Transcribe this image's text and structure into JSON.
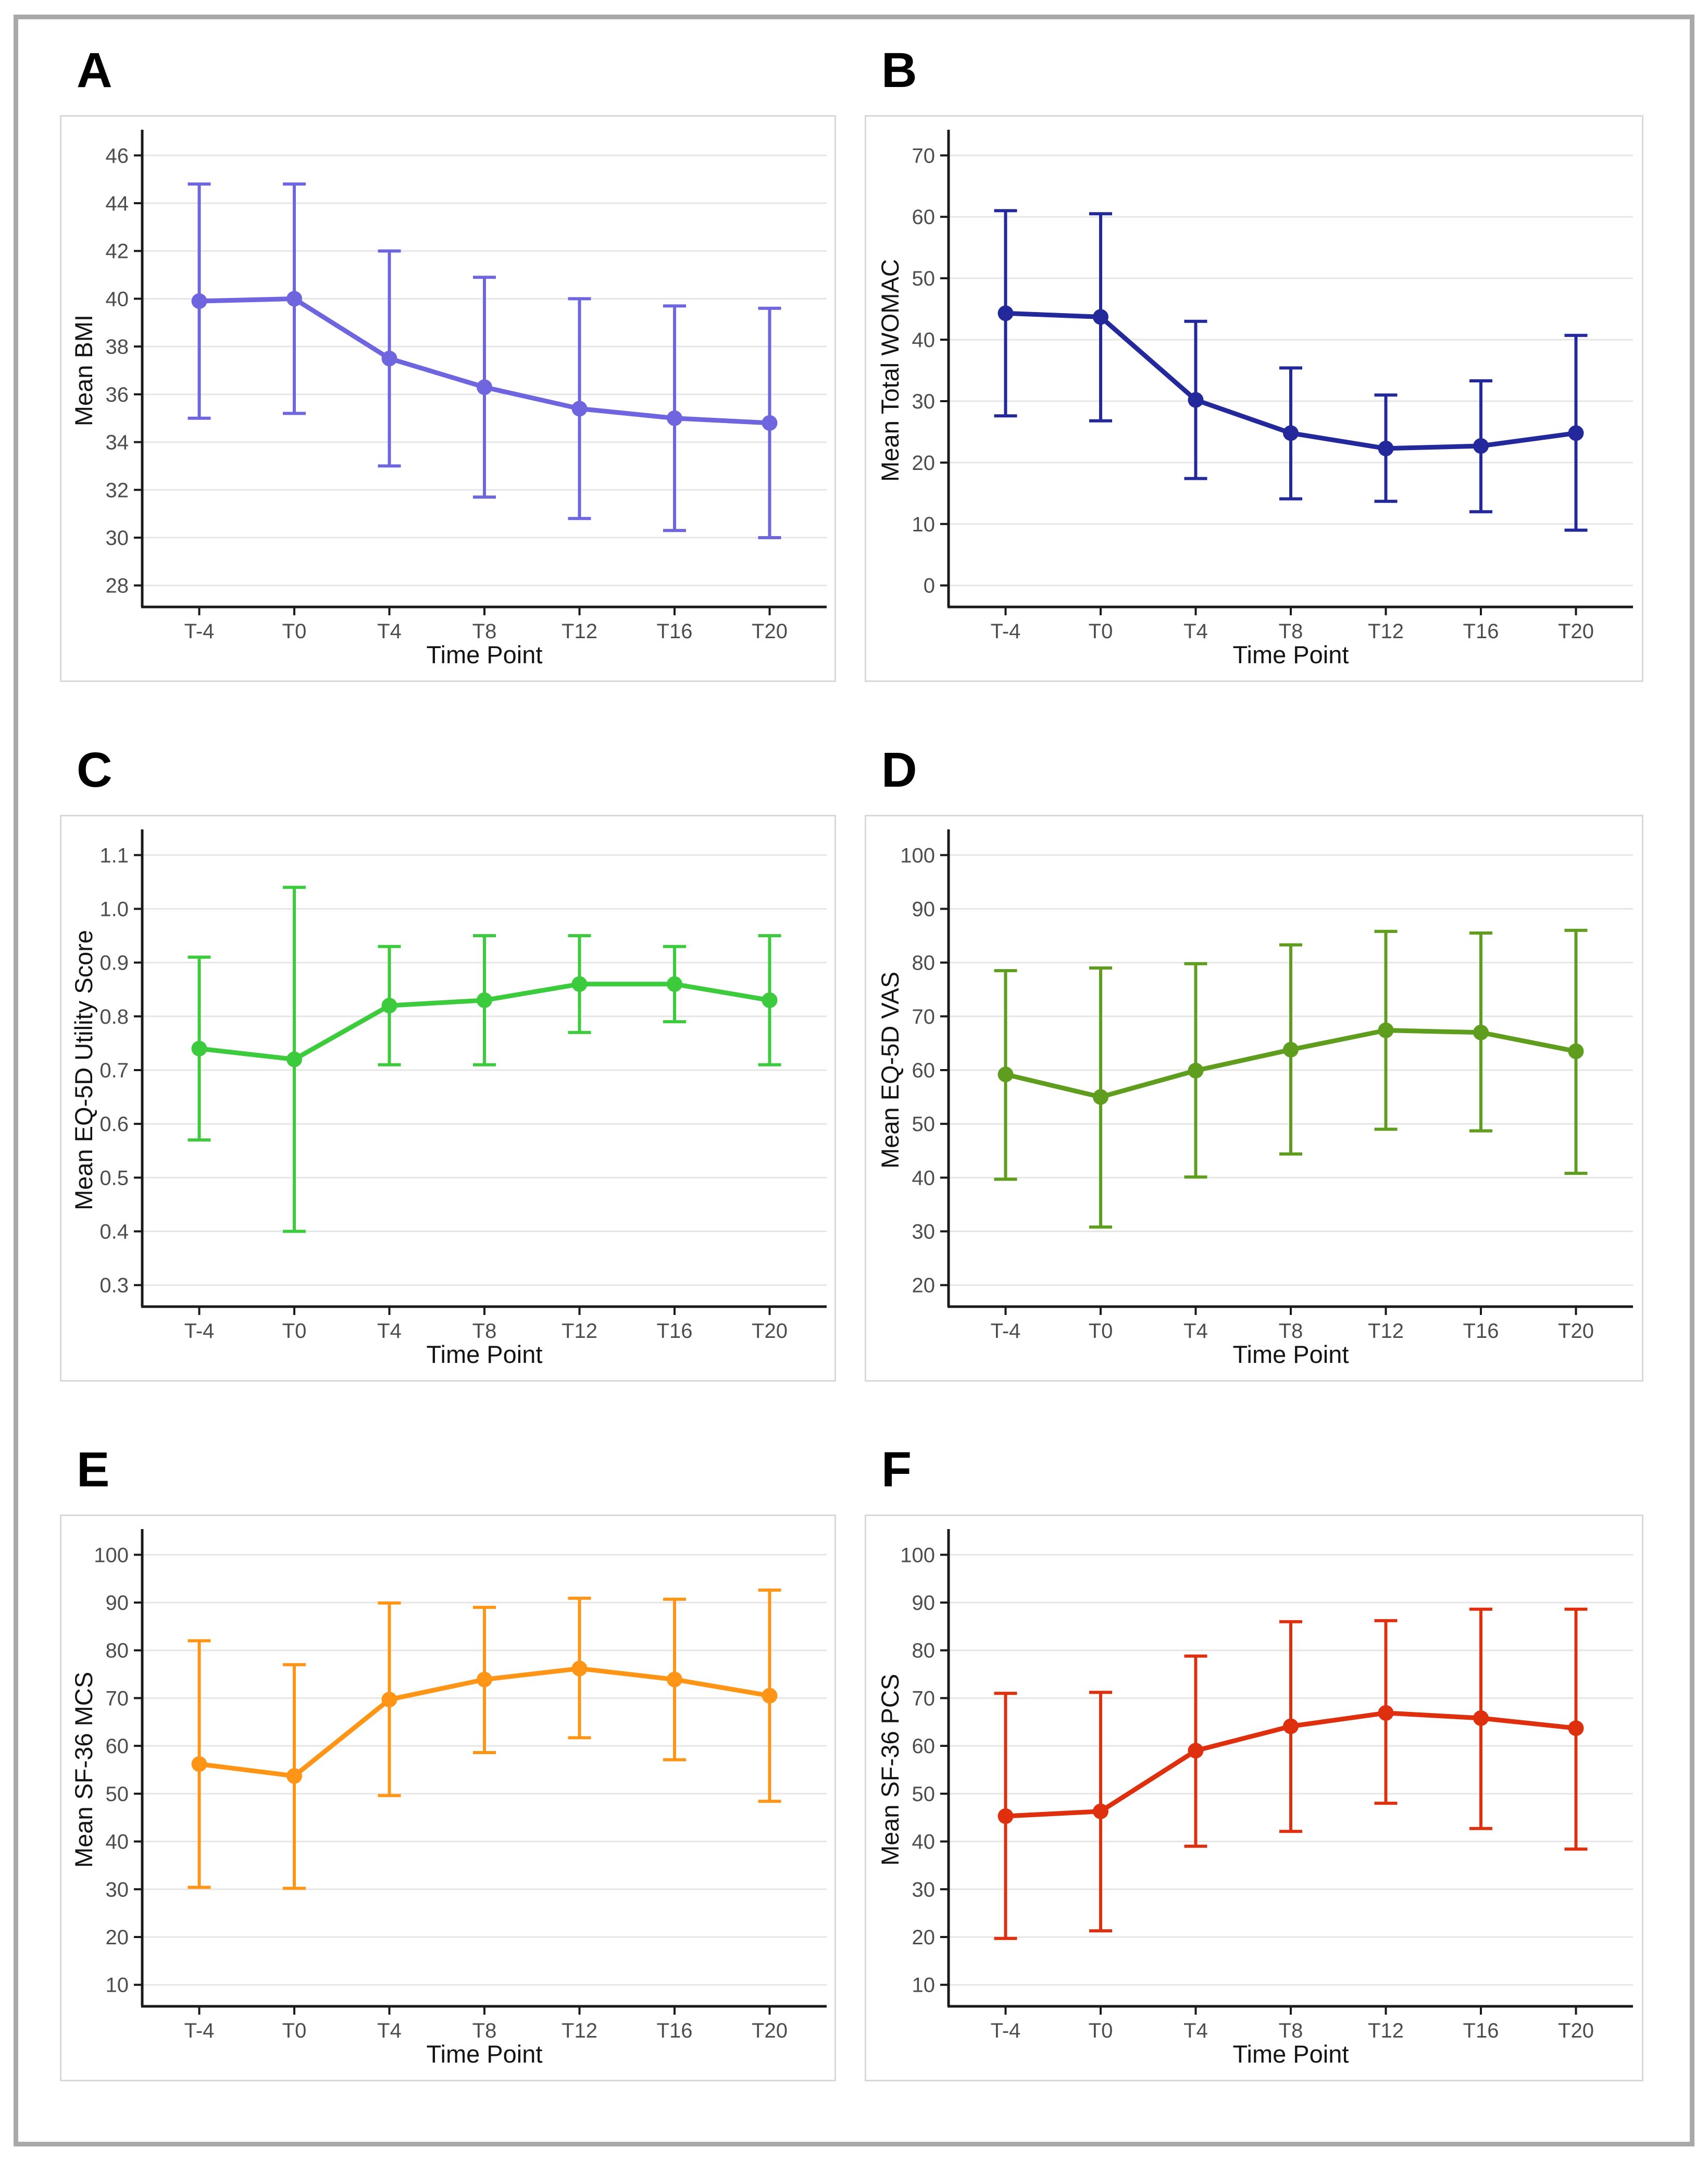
{
  "figure": {
    "xlabel": "Time Point",
    "categories": [
      "T-4",
      "T0",
      "T4",
      "T8",
      "T12",
      "T16",
      "T20"
    ]
  },
  "chart_data": [
    {
      "type": "line",
      "panel_label": "A",
      "ylabel": "Mean BMI",
      "xlabel": "Time Point",
      "categories": [
        "T-4",
        "T0",
        "T4",
        "T8",
        "T12",
        "T16",
        "T20"
      ],
      "series": [
        {
          "name": "Mean BMI",
          "values": [
            39.9,
            40.0,
            37.5,
            36.3,
            35.4,
            35.0,
            34.8
          ],
          "upper": [
            44.8,
            44.8,
            42.0,
            40.9,
            40.0,
            39.7,
            39.6
          ],
          "lower": [
            35.0,
            35.2,
            33.0,
            31.7,
            30.8,
            30.3,
            30.0
          ]
        }
      ],
      "ytick_values": [
        28,
        30,
        32,
        34,
        36,
        38,
        40,
        42,
        44,
        46
      ],
      "ytick_labels": [
        "28",
        "30",
        "32",
        "34",
        "36",
        "38",
        "40",
        "42",
        "44",
        "46"
      ],
      "ylim": [
        27.1,
        46.9
      ],
      "color": "#6F66DF",
      "grid": "horizontal",
      "legend": "none"
    },
    {
      "type": "line",
      "panel_label": "B",
      "ylabel": "Mean Total WOMAC",
      "xlabel": "Time Point",
      "categories": [
        "T-4",
        "T0",
        "T4",
        "T8",
        "T12",
        "T16",
        "T20"
      ],
      "series": [
        {
          "name": "Mean Total WOMAC",
          "values": [
            44.3,
            43.7,
            30.2,
            24.8,
            22.3,
            22.7,
            24.8
          ],
          "upper": [
            61.0,
            60.5,
            43.0,
            35.4,
            31.0,
            33.3,
            40.7
          ],
          "lower": [
            27.6,
            26.8,
            17.4,
            14.1,
            13.7,
            12.0,
            9.0
          ]
        }
      ],
      "ytick_values": [
        0,
        10,
        20,
        30,
        40,
        50,
        60,
        70
      ],
      "ytick_labels": [
        "0",
        "10",
        "20",
        "30",
        "40",
        "50",
        "60",
        "70"
      ],
      "ylim": [
        -3.5,
        73.5
      ],
      "color": "#23289B",
      "grid": "horizontal",
      "legend": "none"
    },
    {
      "type": "line",
      "panel_label": "C",
      "ylabel": "Mean EQ-5D Utility Score",
      "xlabel": "Time Point",
      "categories": [
        "T-4",
        "T0",
        "T4",
        "T8",
        "T12",
        "T16",
        "T20"
      ],
      "series": [
        {
          "name": "Mean EQ-5D Utility Score",
          "values": [
            0.74,
            0.72,
            0.82,
            0.83,
            0.86,
            0.86,
            0.83
          ],
          "upper": [
            0.91,
            1.04,
            0.93,
            0.95,
            0.95,
            0.93,
            0.95
          ],
          "lower": [
            0.57,
            0.4,
            0.71,
            0.71,
            0.77,
            0.79,
            0.71
          ]
        }
      ],
      "ytick_values": [
        0.3,
        0.4,
        0.5,
        0.6,
        0.7,
        0.8,
        0.9,
        1.0,
        1.1
      ],
      "ytick_labels": [
        "0.3",
        "0.4",
        "0.5",
        "0.6",
        "0.7",
        "0.8",
        "0.9",
        "1.0",
        "1.1"
      ],
      "ylim": [
        0.26,
        1.14
      ],
      "color": "#3CCB3C",
      "grid": "horizontal",
      "legend": "none"
    },
    {
      "type": "line",
      "panel_label": "D",
      "ylabel": "Mean EQ-5D VAS",
      "xlabel": "Time Point",
      "categories": [
        "T-4",
        "T0",
        "T4",
        "T8",
        "T12",
        "T16",
        "T20"
      ],
      "series": [
        {
          "name": "Mean EQ-5D VAS",
          "values": [
            59.2,
            55.0,
            59.9,
            63.8,
            67.4,
            67.0,
            63.5
          ],
          "upper": [
            78.5,
            79.0,
            79.8,
            83.3,
            85.8,
            85.5,
            86.0
          ],
          "lower": [
            39.7,
            30.8,
            40.1,
            44.4,
            49.0,
            48.7,
            40.8
          ]
        }
      ],
      "ytick_values": [
        20,
        30,
        40,
        50,
        60,
        70,
        80,
        90,
        100
      ],
      "ytick_labels": [
        "20",
        "30",
        "40",
        "50",
        "60",
        "70",
        "80",
        "90",
        "100"
      ],
      "ylim": [
        16,
        104
      ],
      "color": "#5F9D1E",
      "grid": "horizontal",
      "legend": "none"
    },
    {
      "type": "line",
      "panel_label": "E",
      "ylabel": "Mean SF-36 MCS",
      "xlabel": "Time Point",
      "categories": [
        "T-4",
        "T0",
        "T4",
        "T8",
        "T12",
        "T16",
        "T20"
      ],
      "series": [
        {
          "name": "Mean SF-36 MCS",
          "values": [
            56.2,
            53.7,
            69.7,
            73.9,
            76.2,
            73.9,
            70.5
          ],
          "upper": [
            82.0,
            77.0,
            89.9,
            89.0,
            90.9,
            90.7,
            92.6
          ],
          "lower": [
            30.4,
            30.2,
            49.6,
            58.6,
            61.7,
            57.1,
            48.4
          ]
        }
      ],
      "ytick_values": [
        10,
        20,
        30,
        40,
        50,
        60,
        70,
        80,
        90,
        100
      ],
      "ytick_labels": [
        "10",
        "20",
        "30",
        "40",
        "50",
        "60",
        "70",
        "80",
        "90",
        "100"
      ],
      "ylim": [
        5.5,
        104.5
      ],
      "color": "#FF9517",
      "grid": "horizontal",
      "legend": "none"
    },
    {
      "type": "line",
      "panel_label": "F",
      "ylabel": "Mean SF-36 PCS",
      "xlabel": "Time Point",
      "categories": [
        "T-4",
        "T0",
        "T4",
        "T8",
        "T12",
        "T16",
        "T20"
      ],
      "series": [
        {
          "name": "Mean SF-36 PCS",
          "values": [
            45.3,
            46.3,
            59.0,
            64.1,
            66.9,
            65.8,
            63.7
          ],
          "upper": [
            71.0,
            71.2,
            78.8,
            86.0,
            86.2,
            88.6,
            88.6
          ],
          "lower": [
            19.7,
            21.3,
            39.0,
            42.1,
            48.0,
            42.7,
            38.4
          ]
        }
      ],
      "ytick_values": [
        10,
        20,
        30,
        40,
        50,
        60,
        70,
        80,
        90,
        100
      ],
      "ytick_labels": [
        "10",
        "20",
        "30",
        "40",
        "50",
        "60",
        "70",
        "80",
        "90",
        "100"
      ],
      "ylim": [
        5.5,
        104.5
      ],
      "color": "#DE300E",
      "grid": "horizontal",
      "legend": "none"
    }
  ]
}
